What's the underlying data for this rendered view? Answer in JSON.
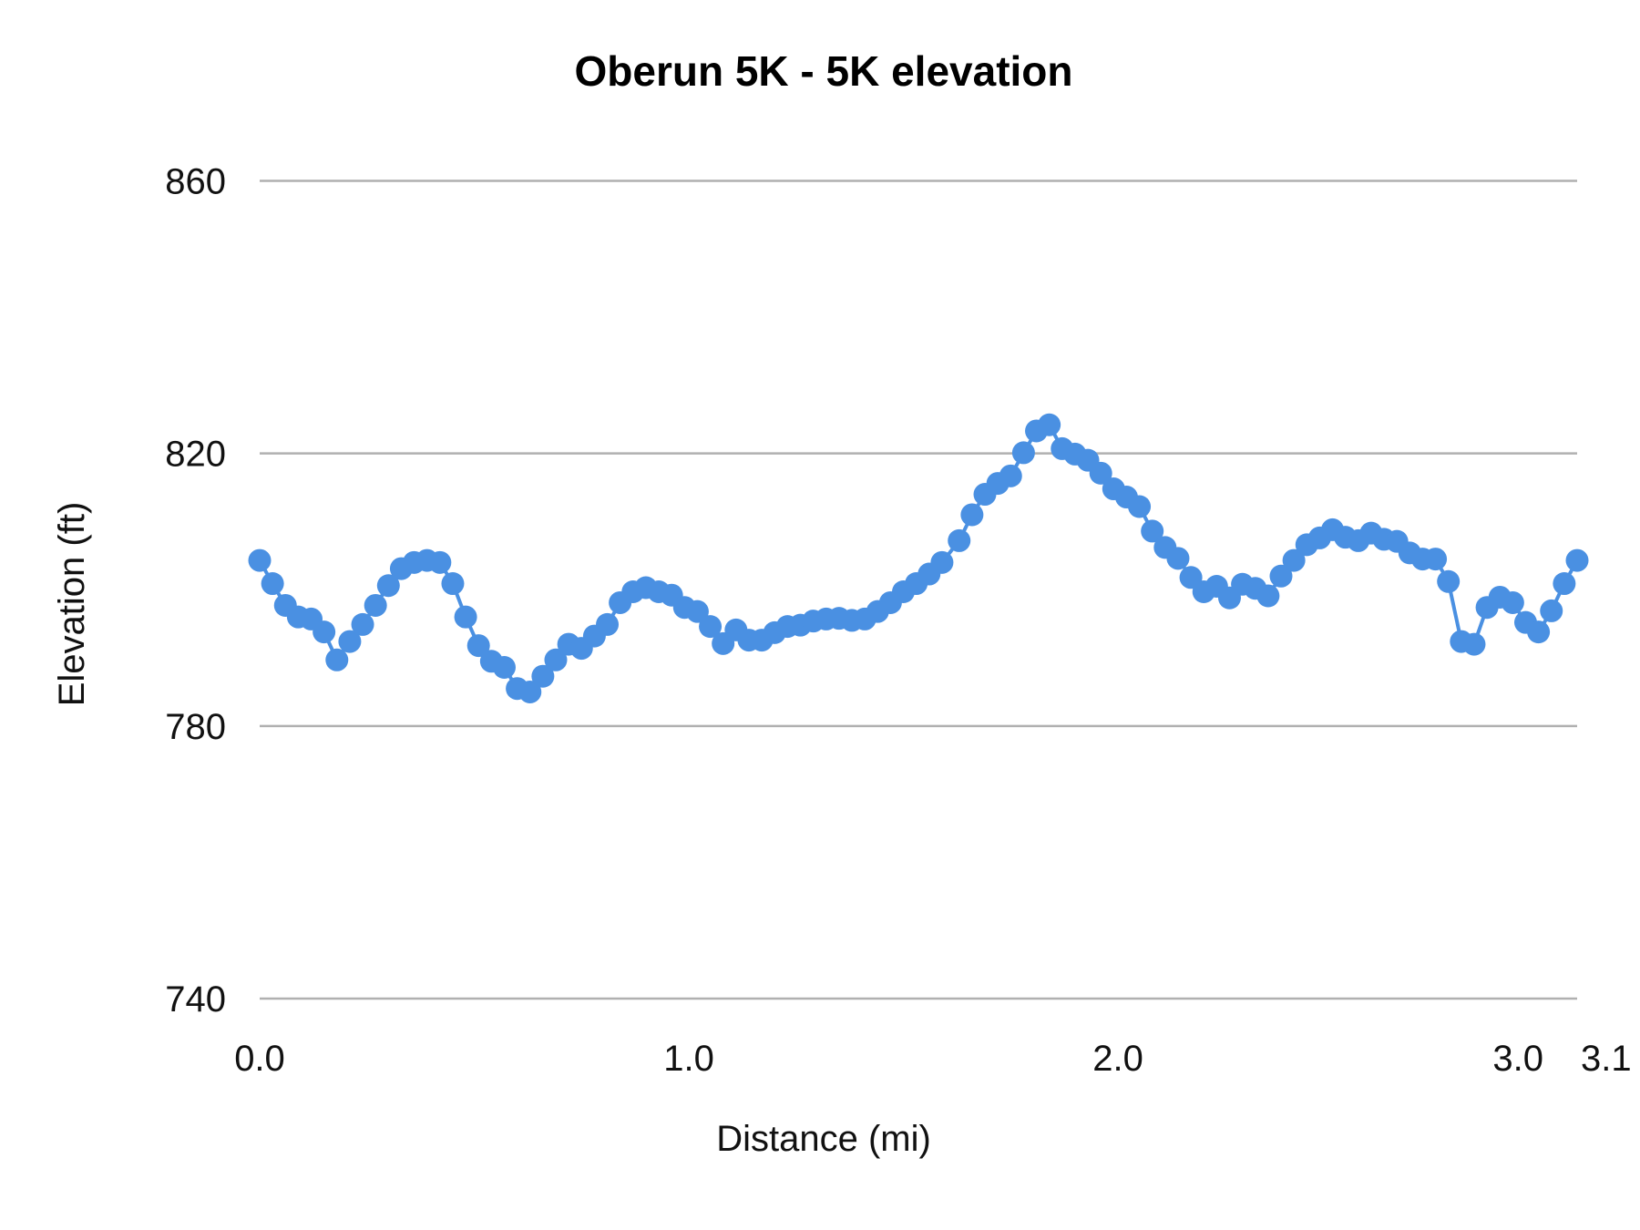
{
  "chart_data": {
    "type": "line",
    "title": "Oberun 5K - 5K elevation",
    "xlabel": "Distance (mi)",
    "ylabel": "Elevation (ft)",
    "xlim": [
      0,
      3.07
    ],
    "ylim": [
      740,
      860
    ],
    "grid": true,
    "legend": "none",
    "y_ticks": [
      {
        "value": 860,
        "label": "860"
      },
      {
        "value": 820,
        "label": "820"
      },
      {
        "value": 780,
        "label": "780"
      },
      {
        "value": 740,
        "label": "740"
      }
    ],
    "x_ticks": [
      {
        "value": 0,
        "label": "0.0"
      },
      {
        "value": 1,
        "label": "1.0"
      },
      {
        "value": 2,
        "label": "2.0"
      },
      {
        "value": 3,
        "label": "3.0"
      },
      {
        "value": 3.07,
        "label": "3.1"
      }
    ],
    "series": [
      {
        "color": "#4a90e2",
        "marker": "circle",
        "x": [
          0.0,
          0.03,
          0.06,
          0.09,
          0.12,
          0.15,
          0.18,
          0.21,
          0.24,
          0.27,
          0.3,
          0.33,
          0.36,
          0.39,
          0.42,
          0.45,
          0.48,
          0.51,
          0.54,
          0.57,
          0.6,
          0.63,
          0.66,
          0.69,
          0.72,
          0.75,
          0.78,
          0.81,
          0.84,
          0.87,
          0.9,
          0.93,
          0.96,
          0.99,
          1.02,
          1.05,
          1.08,
          1.11,
          1.14,
          1.17,
          1.2,
          1.23,
          1.26,
          1.29,
          1.32,
          1.35,
          1.38,
          1.41,
          1.44,
          1.47,
          1.5,
          1.53,
          1.56,
          1.59,
          1.63,
          1.66,
          1.69,
          1.72,
          1.75,
          1.78,
          1.81,
          1.84,
          1.87,
          1.9,
          1.93,
          1.96,
          1.99,
          2.02,
          2.05,
          2.08,
          2.11,
          2.14,
          2.17,
          2.2,
          2.23,
          2.26,
          2.29,
          2.32,
          2.35,
          2.38,
          2.41,
          2.44,
          2.47,
          2.5,
          2.53,
          2.56,
          2.59,
          2.62,
          2.65,
          2.68,
          2.71,
          2.74,
          2.77,
          2.8,
          2.83,
          2.86,
          2.89,
          2.92,
          2.95,
          2.98,
          3.01,
          3.04,
          3.07
        ],
        "y": [
          804.3,
          800.9,
          797.7,
          796.0,
          795.7,
          793.8,
          789.7,
          792.4,
          794.9,
          797.7,
          800.6,
          803.1,
          804.0,
          804.3,
          804.0,
          800.9,
          796.0,
          791.8,
          789.5,
          788.6,
          785.5,
          785.0,
          787.3,
          789.7,
          792.0,
          791.4,
          793.2,
          794.9,
          798.1,
          799.7,
          800.3,
          799.7,
          799.2,
          797.4,
          796.8,
          794.6,
          792.1,
          794.1,
          792.6,
          792.6,
          793.7,
          794.6,
          794.8,
          795.4,
          795.7,
          795.8,
          795.5,
          795.7,
          796.8,
          798.1,
          799.7,
          800.9,
          802.3,
          804.0,
          807.2,
          811.0,
          814.0,
          815.6,
          816.7,
          820.1,
          823.3,
          824.2,
          820.7,
          819.9,
          819.0,
          817.1,
          814.8,
          813.6,
          812.2,
          808.6,
          806.2,
          804.6,
          801.8,
          799.7,
          800.5,
          798.8,
          800.8,
          800.2,
          799.1,
          802.0,
          804.3,
          806.6,
          807.6,
          808.8,
          807.7,
          807.2,
          808.3,
          807.4,
          807.1,
          805.4,
          804.5,
          804.5,
          801.2,
          792.4,
          792.0,
          797.4,
          798.9,
          798.1,
          795.2,
          793.8,
          796.9,
          800.9,
          804.3
        ]
      }
    ]
  }
}
